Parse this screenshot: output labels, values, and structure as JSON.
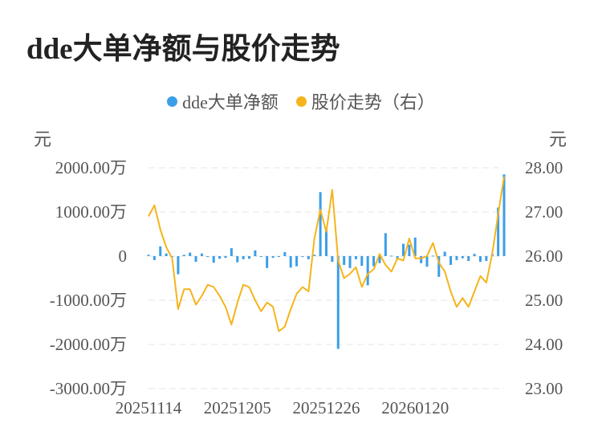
{
  "title": "dde大单净额与股价走势",
  "legend": [
    {
      "label": "dde大单净额",
      "color": "#3b9ee8"
    },
    {
      "label": "股价走势（右）",
      "color": "#f5b41b"
    }
  ],
  "units": {
    "left": "元",
    "right": "元"
  },
  "chart_data": {
    "type": "bar+line",
    "title": "dde大单净额与股价走势",
    "y_left": {
      "ticks": [
        "2000.00万",
        "1000.00万",
        "0",
        "-1000.00万",
        "-2000.00万",
        "-3000.00万"
      ],
      "range": [
        -3000,
        2000
      ],
      "unit": "万"
    },
    "y_right": {
      "ticks": [
        "28.00",
        "27.00",
        "26.00",
        "25.00",
        "24.00",
        "23.00"
      ],
      "range": [
        23,
        28
      ]
    },
    "x_ticks": [
      {
        "label": "20251114",
        "index": 0
      },
      {
        "label": "20251205",
        "index": 15
      },
      {
        "label": "20251226",
        "index": 30
      },
      {
        "label": "20260120",
        "index": 45
      }
    ],
    "grid": true,
    "legend_position": "top-center",
    "series": [
      {
        "name": "dde大单净额",
        "kind": "bar",
        "axis": "left",
        "values": [
          30,
          -90,
          220,
          60,
          -20,
          -410,
          30,
          80,
          -130,
          60,
          -20,
          -150,
          -60,
          -40,
          180,
          -140,
          -70,
          -60,
          130,
          -20,
          -270,
          -40,
          -20,
          90,
          -260,
          -230,
          -20,
          -70,
          30,
          1450,
          650,
          -130,
          -2100,
          -200,
          -270,
          -70,
          -220,
          -660,
          -230,
          -160,
          520,
          10,
          -80,
          280,
          260,
          420,
          -160,
          -240,
          10,
          -470,
          100,
          -200,
          -90,
          -50,
          -110,
          50,
          -130,
          -110,
          50,
          1100,
          1850
        ]
      },
      {
        "name": "股价走势（右）",
        "kind": "line",
        "axis": "right",
        "values": [
          26.9,
          27.15,
          26.6,
          26.2,
          25.95,
          24.8,
          25.25,
          25.25,
          24.9,
          25.1,
          25.35,
          25.3,
          25.1,
          24.85,
          24.45,
          24.95,
          25.35,
          25.3,
          25.0,
          24.75,
          24.95,
          24.85,
          24.3,
          24.4,
          24.8,
          25.15,
          25.3,
          25.2,
          26.4,
          27.05,
          26.55,
          27.5,
          25.9,
          25.5,
          25.6,
          25.75,
          25.3,
          25.6,
          25.7,
          26.05,
          25.8,
          25.65,
          25.95,
          25.9,
          26.4,
          25.95,
          25.95,
          26.0,
          26.3,
          25.85,
          25.65,
          25.2,
          24.85,
          25.05,
          24.85,
          25.2,
          25.55,
          25.4,
          26.05,
          26.95,
          27.8
        ]
      }
    ]
  }
}
